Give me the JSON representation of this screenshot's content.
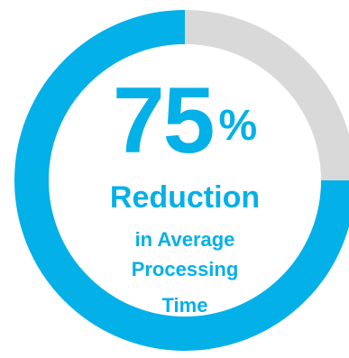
{
  "chart_data": {
    "type": "pie",
    "subtype": "donut",
    "value": 75,
    "unit": "%",
    "max": 100,
    "slices": [
      {
        "role": "filled",
        "value": 75,
        "color": "#04b0e8"
      },
      {
        "role": "remaining",
        "value": 25,
        "color": "#d9d9d9"
      }
    ],
    "start": "top",
    "direction": "counter-clockwise",
    "center_text": {
      "number": "75",
      "unit": "%",
      "line1": "Reduction",
      "line2": "in Average",
      "line3": "Processing",
      "line4": "Time"
    }
  },
  "colors": {
    "accent": "#04b0e8",
    "track": "#d9d9d9",
    "background": "#ffffff"
  }
}
